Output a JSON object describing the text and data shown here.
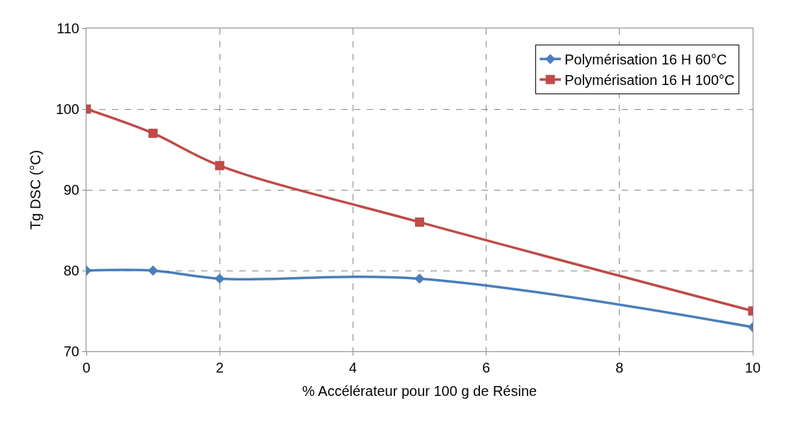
{
  "chart_data": {
    "type": "line",
    "xlabel": "% Accélérateur pour 100 g de Résine",
    "ylabel": "Tg DSC (°C)",
    "x": [
      0,
      1,
      2,
      5,
      10
    ],
    "series": [
      {
        "name": "Polymérisation 16 H 60°C",
        "color": "#4a7ebb",
        "marker": "diamond",
        "values": [
          80,
          80,
          79,
          79,
          73
        ]
      },
      {
        "name": "Polymérisation 16 H 100°C",
        "color": "#be4b48",
        "marker": "square",
        "values": [
          100,
          97,
          93,
          86,
          75
        ]
      }
    ],
    "xlim": [
      0,
      10
    ],
    "xticks": [
      0,
      2,
      4,
      6,
      8,
      10
    ],
    "ylim": [
      70,
      110
    ],
    "yticks": [
      70,
      80,
      90,
      100,
      110
    ],
    "grid": true,
    "legend": "top right",
    "line_style": "solid"
  }
}
